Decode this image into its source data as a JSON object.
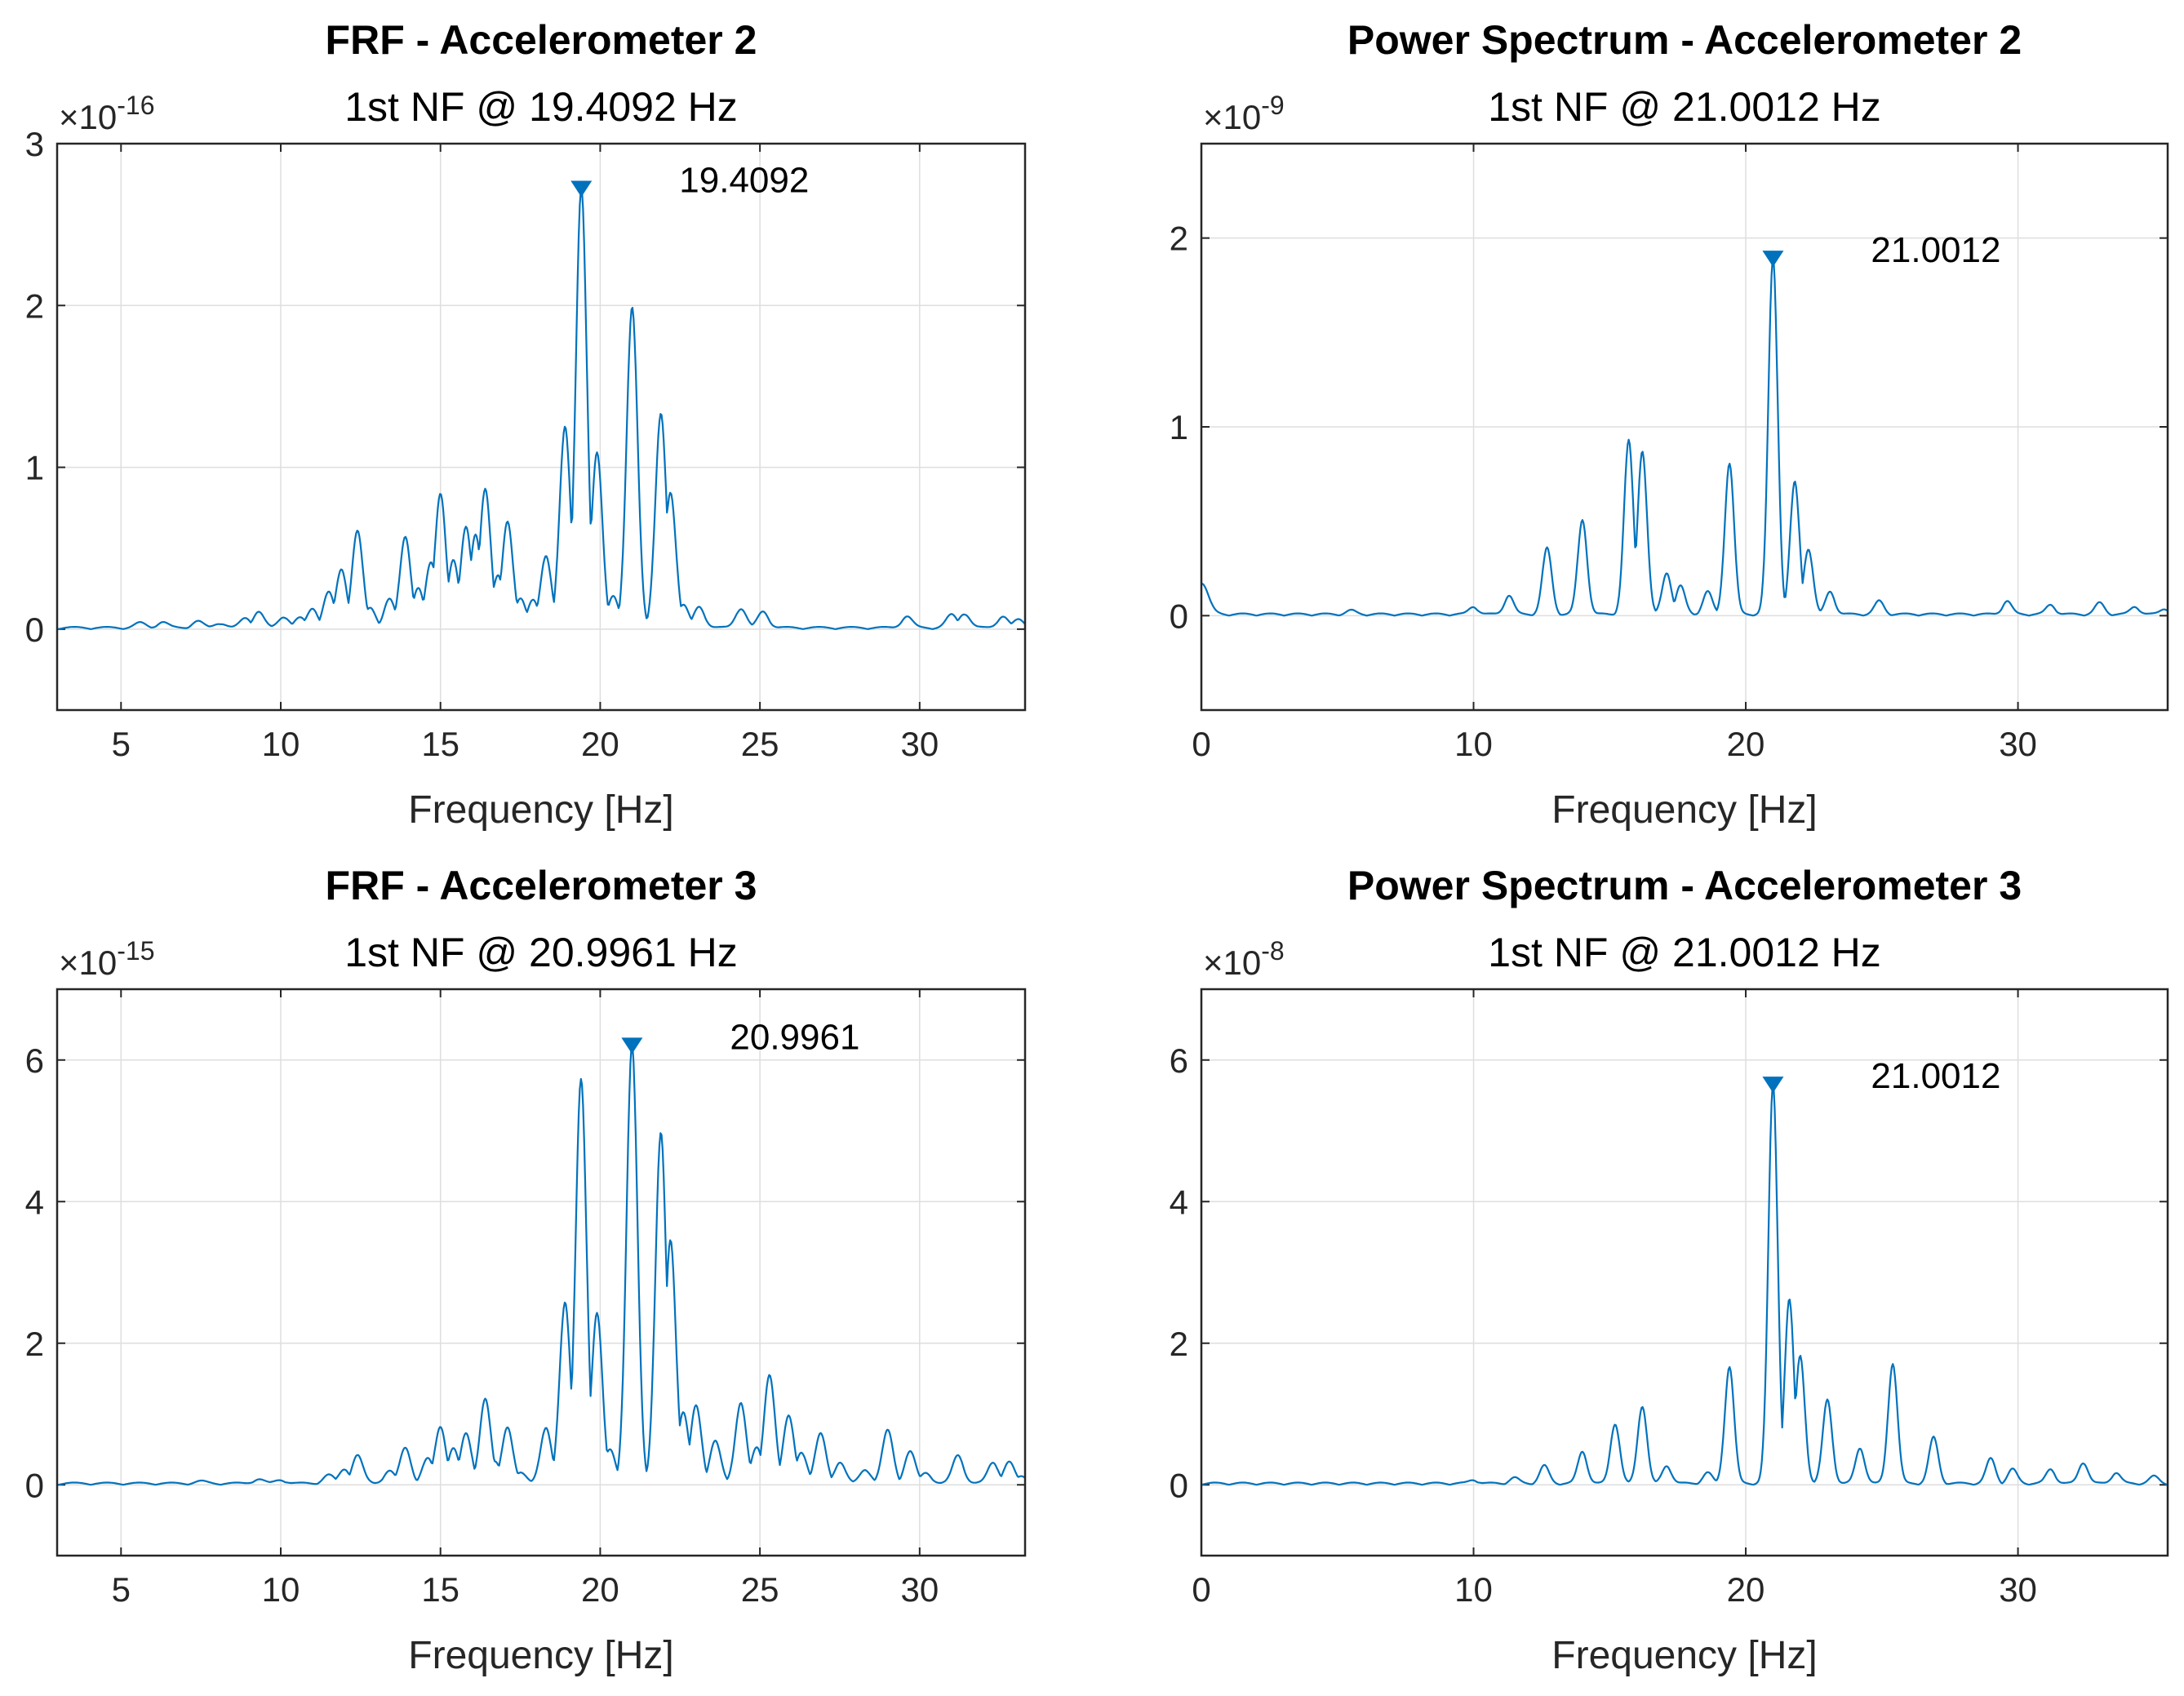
{
  "colors": {
    "series": "#0072BD",
    "axis": "#262626",
    "grid": "#dedede"
  },
  "chart_data": [
    {
      "type": "line",
      "title": "FRF - Accelerometer 2",
      "subtitle": "1st NF @ 19.4092 Hz",
      "xlabel": "Frequency [Hz]",
      "ylabel": "",
      "xlim": [
        3,
        33.3
      ],
      "ylim": [
        -0.5,
        3
      ],
      "xticks": [
        5,
        10,
        15,
        20,
        25,
        30
      ],
      "xtick_labels": [
        "5",
        "10",
        "15",
        "20",
        "25",
        "30"
      ],
      "yticks": [
        0,
        1,
        2,
        3
      ],
      "ytick_labels": [
        "0",
        "1",
        "2",
        "3"
      ],
      "multiplier_base": "×10",
      "multiplier_exp": "-16",
      "grid": true,
      "peak": {
        "x": 19.4092,
        "y": 2.72,
        "label": "19.4092"
      },
      "peaks": [
        [
          5.6,
          0.03
        ],
        [
          6.3,
          0.035
        ],
        [
          7.4,
          0.04
        ],
        [
          8.1,
          0.03
        ],
        [
          8.9,
          0.06
        ],
        [
          9.3,
          0.1
        ],
        [
          10.1,
          0.07
        ],
        [
          10.6,
          0.06
        ],
        [
          11.0,
          0.12
        ],
        [
          11.5,
          0.22
        ],
        [
          11.9,
          0.36
        ],
        [
          12.4,
          0.6
        ],
        [
          12.8,
          0.12
        ],
        [
          13.4,
          0.18
        ],
        [
          13.9,
          0.56
        ],
        [
          14.3,
          0.25
        ],
        [
          14.7,
          0.4
        ],
        [
          15.0,
          0.83
        ],
        [
          15.4,
          0.42
        ],
        [
          15.8,
          0.62
        ],
        [
          16.1,
          0.58
        ],
        [
          16.4,
          0.86
        ],
        [
          16.8,
          0.32
        ],
        [
          17.1,
          0.66
        ],
        [
          17.5,
          0.18
        ],
        [
          17.9,
          0.17
        ],
        [
          18.3,
          0.45
        ],
        [
          18.9,
          1.24
        ],
        [
          19.4092,
          2.72
        ],
        [
          19.9,
          1.08
        ],
        [
          20.4,
          0.2
        ],
        [
          21.0,
          1.98
        ],
        [
          21.9,
          1.32
        ],
        [
          22.2,
          0.84
        ],
        [
          22.6,
          0.14
        ],
        [
          23.1,
          0.13
        ],
        [
          24.4,
          0.12
        ],
        [
          25.1,
          0.1
        ],
        [
          29.6,
          0.07
        ],
        [
          31.0,
          0.08
        ],
        [
          31.4,
          0.09
        ],
        [
          32.6,
          0.07
        ],
        [
          33.1,
          0.05
        ]
      ]
    },
    {
      "type": "line",
      "title": "Power Spectrum - Accelerometer 2",
      "subtitle": "1st NF @ 21.0012 Hz",
      "xlabel": "Frequency [Hz]",
      "ylabel": "",
      "xlim": [
        0,
        35.5
      ],
      "ylim": [
        -0.5,
        2.5
      ],
      "xticks": [
        0,
        10,
        20,
        30
      ],
      "xtick_labels": [
        "0",
        "10",
        "20",
        "30"
      ],
      "yticks": [
        0,
        1,
        2
      ],
      "ytick_labels": [
        "0",
        "1",
        "2"
      ],
      "multiplier_base": "×10",
      "multiplier_exp": "-9",
      "grid": true,
      "peak": {
        "x": 21.0012,
        "y": 1.89,
        "label": "21.0012"
      },
      "peaks": [
        [
          0,
          0.17
        ],
        [
          5.5,
          0.02
        ],
        [
          10.0,
          0.04
        ],
        [
          11.3,
          0.1
        ],
        [
          12.7,
          0.35
        ],
        [
          14.0,
          0.5
        ],
        [
          15.7,
          0.92
        ],
        [
          16.2,
          0.87
        ],
        [
          17.1,
          0.22
        ],
        [
          17.6,
          0.15
        ],
        [
          18.6,
          0.12
        ],
        [
          19.4,
          0.8
        ],
        [
          21.0012,
          1.89
        ],
        [
          21.8,
          0.7
        ],
        [
          22.3,
          0.35
        ],
        [
          23.1,
          0.12
        ],
        [
          24.9,
          0.07
        ],
        [
          29.6,
          0.07
        ],
        [
          31.2,
          0.05
        ],
        [
          33.0,
          0.06
        ],
        [
          34.3,
          0.04
        ],
        [
          35.4,
          0.03
        ]
      ]
    },
    {
      "type": "line",
      "title": "FRF - Accelerometer 3",
      "subtitle": "1st NF @ 20.9961 Hz",
      "xlabel": "Frequency [Hz]",
      "ylabel": "",
      "xlim": [
        3,
        33.3
      ],
      "ylim": [
        -1,
        7
      ],
      "xticks": [
        5,
        10,
        15,
        20,
        25,
        30
      ],
      "xtick_labels": [
        "5",
        "10",
        "15",
        "20",
        "25",
        "30"
      ],
      "yticks": [
        0,
        2,
        4,
        6
      ],
      "ytick_labels": [
        "0",
        "2",
        "4",
        "6"
      ],
      "multiplier_base": "×10",
      "multiplier_exp": "-15",
      "grid": true,
      "peak": {
        "x": 20.9961,
        "y": 6.2,
        "label": "20.9961"
      },
      "peaks": [
        [
          7.5,
          0.03
        ],
        [
          9.3,
          0.06
        ],
        [
          10.0,
          0.05
        ],
        [
          11.5,
          0.12
        ],
        [
          12.0,
          0.2
        ],
        [
          12.4,
          0.4
        ],
        [
          13.4,
          0.18
        ],
        [
          13.9,
          0.5
        ],
        [
          14.6,
          0.35
        ],
        [
          15.0,
          0.8
        ],
        [
          15.4,
          0.5
        ],
        [
          15.8,
          0.7
        ],
        [
          16.4,
          1.2
        ],
        [
          16.7,
          0.3
        ],
        [
          17.1,
          0.8
        ],
        [
          17.5,
          0.15
        ],
        [
          18.3,
          0.8
        ],
        [
          18.9,
          2.55
        ],
        [
          19.4,
          5.72
        ],
        [
          19.9,
          2.4
        ],
        [
          20.3,
          0.5
        ],
        [
          20.9961,
          6.2
        ],
        [
          21.9,
          4.95
        ],
        [
          22.2,
          3.45
        ],
        [
          22.6,
          1.0
        ],
        [
          23.0,
          1.1
        ],
        [
          23.6,
          0.6
        ],
        [
          24.4,
          1.15
        ],
        [
          24.9,
          0.5
        ],
        [
          25.3,
          1.55
        ],
        [
          25.9,
          0.95
        ],
        [
          26.3,
          0.45
        ],
        [
          26.9,
          0.7
        ],
        [
          27.5,
          0.3
        ],
        [
          28.3,
          0.2
        ],
        [
          29.0,
          0.75
        ],
        [
          29.7,
          0.45
        ],
        [
          30.2,
          0.15
        ],
        [
          31.2,
          0.4
        ],
        [
          32.3,
          0.3
        ],
        [
          32.8,
          0.3
        ],
        [
          33.2,
          0.1
        ]
      ]
    },
    {
      "type": "line",
      "title": "Power Spectrum - Accelerometer 3",
      "subtitle": "1st NF @ 21.0012 Hz",
      "xlabel": "Frequency [Hz]",
      "ylabel": "",
      "xlim": [
        0,
        35.5
      ],
      "ylim": [
        -1,
        7
      ],
      "xticks": [
        0,
        10,
        20,
        30
      ],
      "xtick_labels": [
        "0",
        "10",
        "20",
        "30"
      ],
      "yticks": [
        0,
        2,
        4,
        6
      ],
      "ytick_labels": [
        "0",
        "2",
        "4",
        "6"
      ],
      "multiplier_base": "×10",
      "multiplier_exp": "-8",
      "grid": true,
      "peak": {
        "x": 21.0012,
        "y": 5.65,
        "label": "21.0012"
      },
      "peaks": [
        [
          10.0,
          0.05
        ],
        [
          11.5,
          0.08
        ],
        [
          12.6,
          0.25
        ],
        [
          14.0,
          0.45
        ],
        [
          15.2,
          0.85
        ],
        [
          16.2,
          1.1
        ],
        [
          17.1,
          0.25
        ],
        [
          18.6,
          0.15
        ],
        [
          19.4,
          1.65
        ],
        [
          21.0012,
          5.65
        ],
        [
          21.6,
          2.6
        ],
        [
          22.0,
          1.8
        ],
        [
          23.0,
          1.18
        ],
        [
          24.2,
          0.5
        ],
        [
          25.4,
          1.7
        ],
        [
          26.9,
          0.65
        ],
        [
          29.0,
          0.35
        ],
        [
          29.8,
          0.2
        ],
        [
          31.2,
          0.2
        ],
        [
          32.4,
          0.3
        ],
        [
          33.6,
          0.15
        ],
        [
          35.0,
          0.1
        ]
      ]
    }
  ]
}
